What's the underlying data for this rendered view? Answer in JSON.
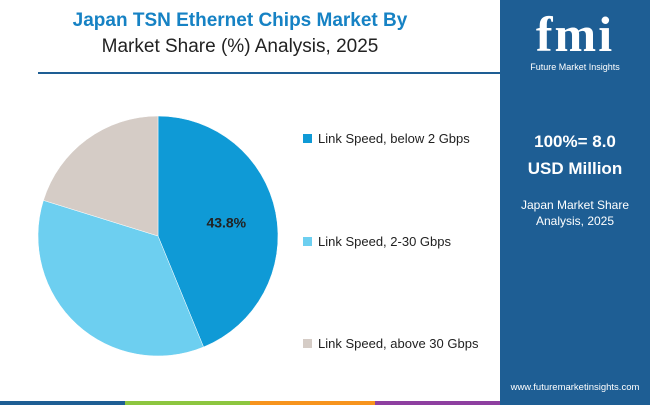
{
  "header": {
    "title_line1": "Japan TSN Ethernet Chips Market By",
    "title_line2": "Market Share (%) Analysis, 2025"
  },
  "chart_data": {
    "type": "pie",
    "title": "Japan TSN Ethernet Chips Market By Market Share (%) Analysis, 2025",
    "categories": [
      "Link Speed, below 2 Gbps",
      "Link Speed, 2-30 Gbps",
      "Link Speed, above 30 Gbps"
    ],
    "values": [
      43.8,
      36.0,
      20.2
    ],
    "colors": [
      "#0f9ad6",
      "#6dcff0",
      "#d5ccc6"
    ],
    "data_labels": [
      "43.8%",
      "",
      ""
    ],
    "legend_position": "right"
  },
  "legend": [
    {
      "label": "Link Speed, below 2 Gbps",
      "color": "#0f9ad6"
    },
    {
      "label": "Link Speed, 2-30 Gbps",
      "color": "#6dcff0"
    },
    {
      "label": "Link Speed, above 30 Gbps",
      "color": "#d5ccc6"
    }
  ],
  "side_panel": {
    "logo_text": "fmi",
    "logo_subtitle": "Future Market Insights",
    "total_line1": "100%= 8.0",
    "total_line2": "USD Million",
    "caption_line1": "Japan Market Share",
    "caption_line2": "Analysis, 2025",
    "website": "www.futuremarketinsights.com",
    "background_color": "#1e5e94"
  },
  "bottom_bar_colors": [
    "#1e5e94",
    "#8dc63f",
    "#f7941d",
    "#8e3fa0"
  ]
}
